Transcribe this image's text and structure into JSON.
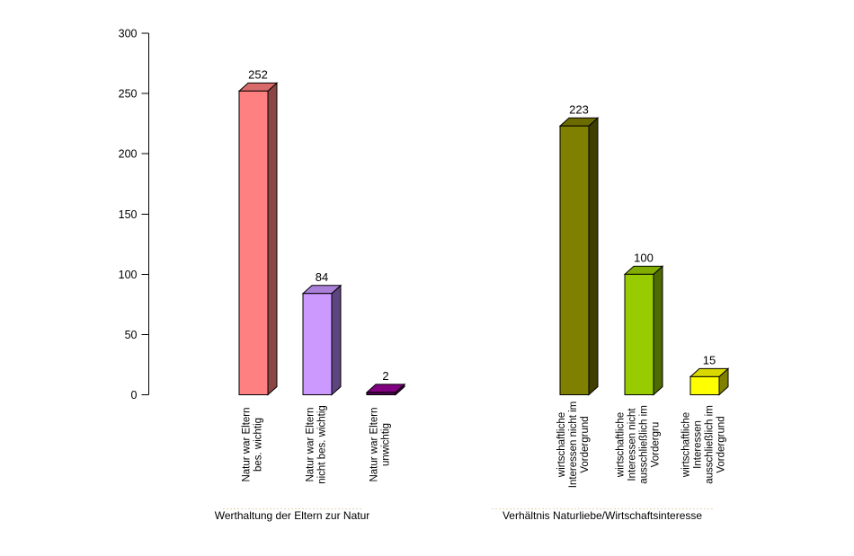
{
  "background_color": "#FFFFFF",
  "text_color": "#000000",
  "chart_data": {
    "type": "bar",
    "style": "3d-column",
    "title": "",
    "grid": "off",
    "legend": "none",
    "y_axis": {
      "min": 0,
      "max": 300,
      "step": 50,
      "tick_labels": [
        "0",
        "50",
        "100",
        "150",
        "200",
        "250",
        "300"
      ]
    },
    "underline_color": "#E3D7B4",
    "groups": [
      {
        "title": "Werthaltung der Eltern zur Natur",
        "bars": [
          {
            "label_lines": [
              "Natur war Eltern",
              "bes. wichtig"
            ],
            "value": 252,
            "color_front": "#FF8080",
            "color_top": "#D96A6A",
            "color_side": "#8C4545"
          },
          {
            "label_lines": [
              "Natur war Eltern",
              "nicht bes. wichtig"
            ],
            "value": 84,
            "color_front": "#CC99FF",
            "color_top": "#AA80D9",
            "color_side": "#5D4580"
          },
          {
            "label_lines": [
              "Natur war Eltern",
              "unwichtig"
            ],
            "value": 2,
            "color_front": "#5A015A",
            "color_top": "#800080",
            "color_side": "#470047"
          }
        ]
      },
      {
        "title": "Verhältnis Naturliebe/Wirtschaftsinteresse",
        "bars": [
          {
            "label_lines": [
              "wirtschaftliche",
              "Interessen nicht im",
              "Vordergrund"
            ],
            "value": 223,
            "color_front": "#808000",
            "color_top": "#6B6B00",
            "color_side": "#3E3E00"
          },
          {
            "label_lines": [
              "wirtschaftliche",
              "Interessen nicht",
              "ausschließlich im",
              "Vordergru"
            ],
            "value": 100,
            "color_front": "#99CC00",
            "color_top": "#81AD00",
            "color_side": "#4D6B00"
          },
          {
            "label_lines": [
              "wirtschaftliche",
              "Interessen",
              "ausschließlich im",
              "Vordergrund"
            ],
            "value": 15,
            "color_front": "#FFFF00",
            "color_top": "#D9D900",
            "color_side": "#808000"
          }
        ]
      }
    ]
  }
}
